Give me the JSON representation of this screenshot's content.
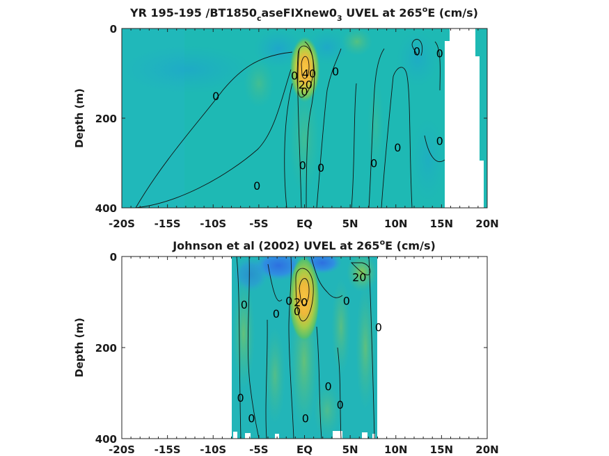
{
  "chart_data": [
    {
      "type": "heatmap",
      "title_parts": [
        "YR 195-195 /BT1850",
        "c",
        "aseFIXnew0",
        "3",
        " UVEL at 265",
        "o",
        "E (cm/s)"
      ],
      "ylabel": "Depth (m)",
      "x_ticks": [
        "-20S",
        "-15S",
        "-10S",
        "-5S",
        "EQ",
        "5N",
        "10N",
        "15N",
        "20N"
      ],
      "x_tick_values": [
        -20,
        -15,
        -10,
        -5,
        0,
        5,
        10,
        15,
        20
      ],
      "y_ticks": [
        "0",
        "200",
        "400"
      ],
      "y_tick_values": [
        0,
        200,
        400
      ],
      "xlim": [
        -20,
        20
      ],
      "ylim": [
        0,
        400
      ],
      "y_reversed": true,
      "data_extent_lat": [
        -20,
        15.3
      ],
      "background_value": -2,
      "jet_core": {
        "lat": 0.2,
        "depth": 80,
        "value": 95
      },
      "contour_labels": [
        {
          "text": "0",
          "lat": -9.7,
          "depth": 150
        },
        {
          "text": "0",
          "lat": -5.2,
          "depth": 350
        },
        {
          "text": "0",
          "lat": -1.1,
          "depth": 105
        },
        {
          "text": "40",
          "lat": 0.5,
          "depth": 100
        },
        {
          "text": "20",
          "lat": 0.1,
          "depth": 125
        },
        {
          "text": "0",
          "lat": 0.0,
          "depth": 140
        },
        {
          "text": "0",
          "lat": 3.4,
          "depth": 95
        },
        {
          "text": "0",
          "lat": -0.2,
          "depth": 305
        },
        {
          "text": "0",
          "lat": 1.8,
          "depth": 310
        },
        {
          "text": "0",
          "lat": 7.6,
          "depth": 300
        },
        {
          "text": "0",
          "lat": 10.2,
          "depth": 265
        },
        {
          "text": "0",
          "lat": 12.3,
          "depth": 50
        },
        {
          "text": "0",
          "lat": 14.8,
          "depth": 55
        },
        {
          "text": "0",
          "lat": 14.8,
          "depth": 250
        }
      ]
    },
    {
      "type": "heatmap",
      "title_parts": [
        "Johnson et al (2002) UVEL at 265",
        "o",
        "E (cm/s)"
      ],
      "ylabel": "Depth (m)",
      "x_ticks": [
        "-20S",
        "-15S",
        "-10S",
        "-5S",
        "EQ",
        "5N",
        "10N",
        "15N",
        "20N"
      ],
      "x_tick_values": [
        -20,
        -15,
        -10,
        -5,
        0,
        5,
        10,
        15,
        20
      ],
      "y_ticks": [
        "0",
        "200",
        "400"
      ],
      "y_tick_values": [
        0,
        200,
        400
      ],
      "xlim": [
        -20,
        20
      ],
      "ylim": [
        0,
        400
      ],
      "y_reversed": true,
      "data_extent_lat": [
        -8,
        8
      ],
      "background_value": -5,
      "jet_core": {
        "lat": 0.0,
        "depth": 65,
        "value": 100
      },
      "contour_labels": [
        {
          "text": "0",
          "lat": -6.6,
          "depth": 105
        },
        {
          "text": "0",
          "lat": -3.1,
          "depth": 125
        },
        {
          "text": "0",
          "lat": -1.7,
          "depth": 97
        },
        {
          "text": "0",
          "lat": -0.8,
          "depth": 120
        },
        {
          "text": "20",
          "lat": -0.4,
          "depth": 100
        },
        {
          "text": "0",
          "lat": 4.6,
          "depth": 97
        },
        {
          "text": "20",
          "lat": 6.0,
          "depth": 45
        },
        {
          "text": "0",
          "lat": 8.1,
          "depth": 155
        },
        {
          "text": "0",
          "lat": -7.0,
          "depth": 310
        },
        {
          "text": "0",
          "lat": -5.8,
          "depth": 355
        },
        {
          "text": "0",
          "lat": 0.1,
          "depth": 355
        },
        {
          "text": "0",
          "lat": 2.6,
          "depth": 285
        },
        {
          "text": "0",
          "lat": 3.9,
          "depth": 325
        }
      ]
    }
  ]
}
